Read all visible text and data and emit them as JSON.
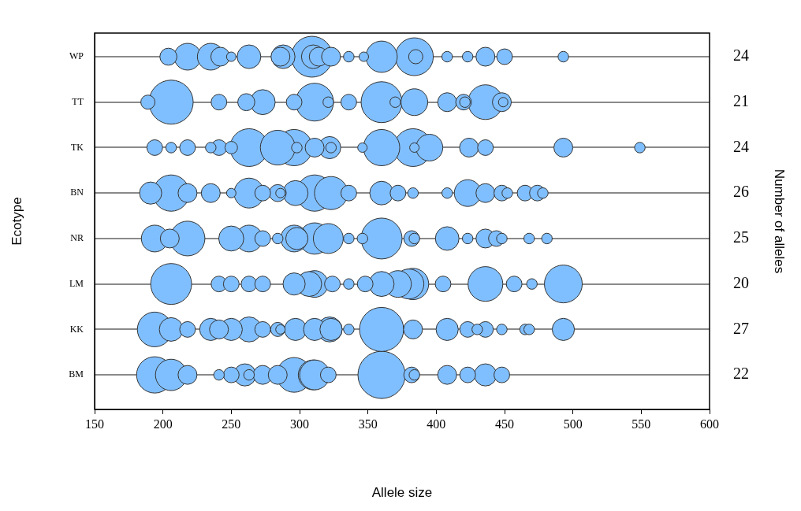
{
  "chart_data": {
    "type": "bubble",
    "orientation": "horizontal",
    "xlabel": "Allele size",
    "ylabel": "Ecotype",
    "y2label": "Number of alleles",
    "xlim": [
      150,
      600
    ],
    "xticks": [
      150,
      200,
      250,
      300,
      350,
      400,
      450,
      500,
      550,
      600
    ],
    "categories": [
      "WP",
      "TT",
      "TK",
      "BN",
      "NR",
      "LM",
      "KK",
      "BM"
    ],
    "y2_categories": [
      "24",
      "21",
      "24",
      "26",
      "25",
      "20",
      "27",
      "22"
    ],
    "grid": "y",
    "legend": false,
    "series": [
      {
        "color": "#80bfff",
        "values": [
          204,
          189,
          194,
          191,
          194,
          206,
          194,
          194
        ],
        "sizes": [
          0.13,
          0.09,
          0.11,
          0.22,
          0.32,
          0.75,
          0.54,
          0.59
        ]
      },
      {
        "color": "#80bfff",
        "values": [
          218,
          206,
          206,
          206,
          205,
          241,
          206,
          206
        ],
        "sizes": [
          0.32,
          0.87,
          0.05,
          0.59,
          0.16,
          0.11,
          0.25,
          0.44
        ]
      },
      {
        "color": "#80bfff",
        "values": [
          235,
          241,
          218,
          218,
          218,
          250,
          218,
          218
        ],
        "sizes": [
          0.32,
          0.11,
          0.11,
          0.16,
          0.54,
          0.11,
          0.11,
          0.16
        ]
      },
      {
        "color": "#80bfff",
        "values": [
          242,
          261,
          235,
          235,
          250,
          263,
          235,
          241
        ],
        "sizes": [
          0.16,
          0.13,
          0.05,
          0.16,
          0.28,
          0.11,
          0.22,
          0.05
        ]
      },
      {
        "color": "#80bfff",
        "values": [
          250,
          273,
          241,
          250,
          263,
          273,
          241,
          250
        ],
        "sizes": [
          0.04,
          0.28,
          0.11,
          0.04,
          0.32,
          0.11,
          0.16,
          0.11
        ]
      },
      {
        "color": "#80bfff",
        "values": [
          263,
          296,
          250,
          263,
          273,
          296,
          250,
          260
        ],
        "sizes": [
          0.25,
          0.11,
          0.07,
          0.4,
          0.11,
          0.22,
          0.22,
          0.22
        ]
      },
      {
        "color": "#80bfff",
        "values": [
          286,
          311,
          263,
          273,
          284,
          307,
          263,
          263
        ],
        "sizes": [
          0.16,
          0.64,
          0.64,
          0.11,
          0.05,
          0.28,
          0.28,
          0.05
        ]
      },
      {
        "color": "#80bfff",
        "values": [
          288,
          321,
          284,
          284,
          296,
          311,
          273,
          273
        ],
        "sizes": [
          0.25,
          0.05,
          0.54,
          0.13,
          0.32,
          0.32,
          0.11,
          0.16
        ]
      },
      {
        "color": "#80bfff",
        "values": [
          309,
          336,
          296,
          286,
          298,
          324,
          284,
          284
        ],
        "sizes": [
          0.75,
          0.11,
          0.59,
          0.04,
          0.22,
          0.11,
          0.09,
          0.16
        ]
      },
      {
        "color": "#80bfff",
        "values": [
          310,
          360,
          298,
          297,
          311,
          336,
          286,
          296
        ],
        "sizes": [
          0.25,
          0.75,
          0.05,
          0.28,
          0.44,
          0.05,
          0.04,
          0.54
        ]
      },
      {
        "color": "#80bfff",
        "values": [
          314,
          370,
          311,
          311,
          321,
          348,
          297,
          310
        ],
        "sizes": [
          0.16,
          0.05,
          0.16,
          0.59,
          0.4,
          0.11,
          0.22,
          0.4
        ]
      },
      {
        "color": "#80bfff",
        "values": [
          323,
          384,
          322,
          323,
          336,
          360,
          311,
          311
        ],
        "sizes": [
          0.16,
          0.32,
          0.22,
          0.49,
          0.05,
          0.28,
          0.22,
          0.4
        ]
      },
      {
        "color": "#80bfff",
        "values": [
          336,
          408,
          323,
          336,
          346,
          372,
          322,
          321
        ],
        "sizes": [
          0.05,
          0.16,
          0.05,
          0.11,
          0.05,
          0.32,
          0.28,
          0.11
        ]
      },
      {
        "color": "#80bfff",
        "values": [
          347,
          420,
          346,
          360,
          360,
          380,
          323,
          360
        ],
        "sizes": [
          0.04,
          0.11,
          0.04,
          0.25,
          0.75,
          0.4,
          0.22,
          1
        ]
      },
      {
        "color": "#80bfff",
        "values": [
          360,
          421,
          360,
          372,
          382,
          383,
          336,
          382
        ],
        "sizes": [
          0.44,
          0.05,
          0.59,
          0.11,
          0.11,
          0.44,
          0.05,
          0.11
        ]
      },
      {
        "color": "#80bfff",
        "values": [
          384,
          436,
          383,
          383,
          384,
          405,
          360,
          384
        ],
        "sizes": [
          0.64,
          0.54,
          0.64,
          0.05,
          0.05,
          0.11,
          0.87,
          0.05
        ]
      },
      {
        "color": "#80bfff",
        "values": [
          385,
          448,
          384,
          408,
          408,
          436,
          383,
          408
        ],
        "sizes": [
          0.09,
          0.16,
          0.04,
          0.05,
          0.25,
          0.54,
          0.16,
          0.16
        ]
      },
      {
        "color": "#80bfff",
        "values": [
          408,
          449,
          395,
          423,
          423,
          457,
          408,
          423
        ],
        "sizes": [
          0.05,
          0.04,
          0.32,
          0.32,
          0.05,
          0.11,
          0.22,
          0.11
        ]
      },
      {
        "color": "#80bfff",
        "values": [
          423,
          null,
          424,
          436,
          436,
          470,
          423,
          436
        ],
        "sizes": [
          0.05,
          null,
          0.16,
          0.16,
          0.16,
          0.05,
          0.11,
          0.22
        ]
      },
      {
        "color": "#80bfff",
        "values": [
          436,
          null,
          436,
          448,
          444,
          493,
          430,
          448
        ],
        "sizes": [
          0.16,
          null,
          0.11,
          0.11,
          0.11,
          0.64,
          0.05,
          0.11
        ]
      },
      {
        "color": "#80bfff",
        "values": [
          450,
          null,
          493,
          452,
          448,
          null,
          436,
          null
        ],
        "sizes": [
          0.11,
          null,
          0.16,
          0.05,
          0.05,
          null,
          0.11,
          null
        ]
      },
      {
        "color": "#80bfff",
        "values": [
          493,
          null,
          549,
          465,
          468,
          null,
          448,
          null
        ],
        "sizes": [
          0.05,
          null,
          0.05,
          0.11,
          0.05,
          null,
          0.05,
          null
        ]
      },
      {
        "color": "#80bfff",
        "values": [
          null,
          null,
          null,
          474,
          481,
          null,
          465,
          null
        ],
        "sizes": [
          null,
          null,
          null,
          0.11,
          0.05,
          null,
          0.05,
          null
        ]
      },
      {
        "color": "#80bfff",
        "values": [
          null,
          null,
          null,
          478,
          null,
          null,
          468,
          null
        ],
        "sizes": [
          null,
          null,
          null,
          0.05,
          null,
          null,
          0.05,
          null
        ]
      },
      {
        "color": "#80bfff",
        "values": [
          null,
          null,
          null,
          null,
          null,
          null,
          493,
          null
        ],
        "sizes": [
          null,
          null,
          null,
          null,
          null,
          null,
          0.22,
          null
        ]
      }
    ]
  }
}
